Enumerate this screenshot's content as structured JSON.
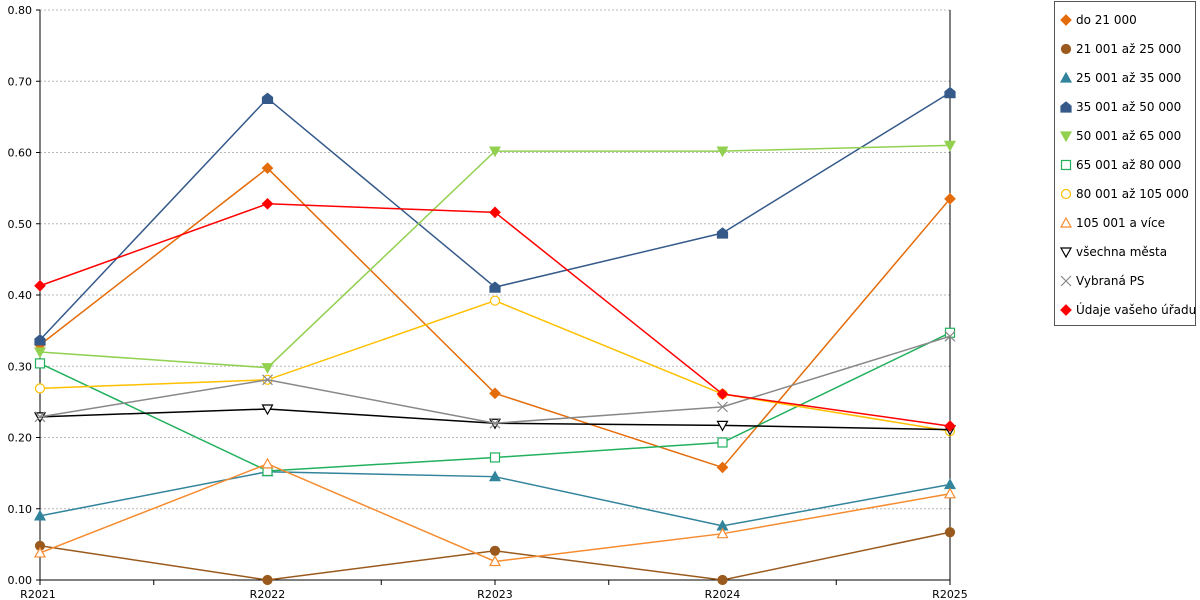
{
  "chart_data": {
    "type": "line",
    "categories": [
      "R2021",
      "R2022",
      "R2023",
      "R2024",
      "R2025"
    ],
    "ylim": [
      0,
      0.8
    ],
    "yticks": [
      "0.00",
      "0.10",
      "0.20",
      "0.30",
      "0.40",
      "0.50",
      "0.60",
      "0.70",
      "0.80"
    ],
    "grid": true,
    "legend_position": "right",
    "series": [
      {
        "name": "do 21 000",
        "color": "#E46C0A",
        "marker": "diamond",
        "fill": true,
        "values": [
          0.33,
          0.578,
          0.262,
          0.158,
          0.535
        ]
      },
      {
        "name": "21 001 až 25 000",
        "color": "#9A5A1E",
        "marker": "circle",
        "fill": true,
        "values": [
          0.048,
          0.0,
          0.041,
          0.0,
          0.067
        ]
      },
      {
        "name": "25 001 až 35 000",
        "color": "#31849B",
        "marker": "triangle",
        "fill": true,
        "values": [
          0.09,
          0.152,
          0.145,
          0.076,
          0.134
        ]
      },
      {
        "name": "35 001 až 50 000",
        "color": "#355A8A",
        "marker": "pentagon",
        "fill": true,
        "values": [
          0.337,
          0.676,
          0.411,
          0.487,
          0.684
        ]
      },
      {
        "name": "50 001 až 65 000",
        "color": "#92D050",
        "marker": "triangle-down",
        "fill": true,
        "values": [
          0.32,
          0.298,
          0.602,
          0.602,
          0.61
        ]
      },
      {
        "name": "65 001 až 80 000",
        "color": "#21B15D",
        "marker": "square",
        "fill": false,
        "values": [
          0.304,
          0.153,
          0.172,
          0.193,
          0.347
        ]
      },
      {
        "name": "80 001 až 105 000",
        "color": "#FFC000",
        "marker": "circle",
        "fill": false,
        "values": [
          0.269,
          0.281,
          0.392,
          0.261,
          0.209
        ]
      },
      {
        "name": "105 001 a více",
        "color": "#F68B2F",
        "marker": "triangle",
        "fill": false,
        "values": [
          0.038,
          0.163,
          0.026,
          0.065,
          0.121
        ]
      },
      {
        "name": "všechna města",
        "color": "#000000",
        "marker": "triangle-down",
        "fill": false,
        "values": [
          0.229,
          0.24,
          0.22,
          0.217,
          0.211
        ]
      },
      {
        "name": "Vybraná PS",
        "color": "#888888",
        "marker": "x",
        "fill": false,
        "values": [
          0.229,
          0.281,
          0.22,
          0.243,
          0.342
        ]
      },
      {
        "name": "Údaje vašeho úřadu",
        "color": "#FF0000",
        "marker": "diamond",
        "fill": true,
        "values": [
          0.413,
          0.528,
          0.516,
          0.261,
          0.216
        ]
      }
    ]
  }
}
